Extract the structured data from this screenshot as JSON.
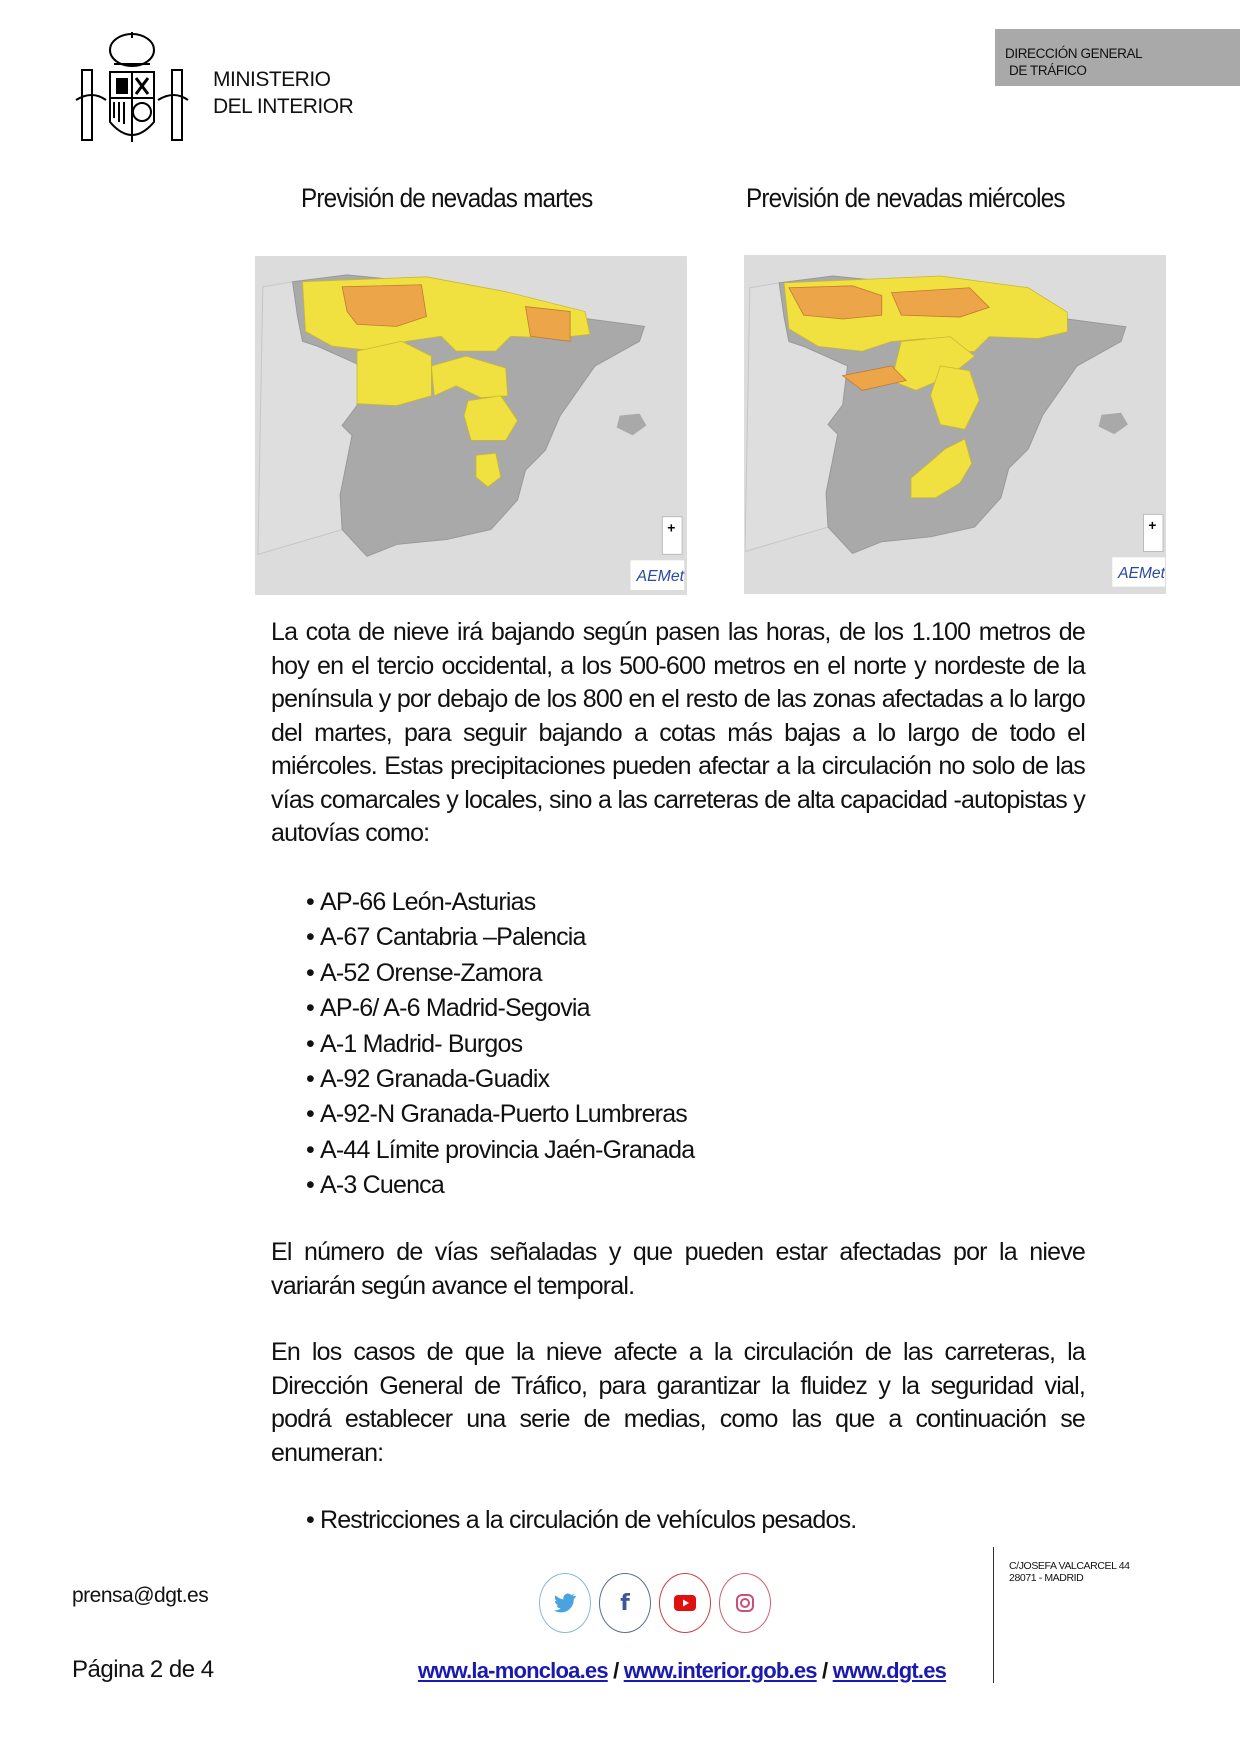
{
  "header": {
    "ministry_line1": "MINISTERIO",
    "ministry_line2": "DEL INTERIOR",
    "dgt_line1": "DIRECCIÓN GENERAL",
    "dgt_line2": "DE TRÁFICO"
  },
  "maps": [
    {
      "title": "Previsión de nevadas martes",
      "logo": "AEMet"
    },
    {
      "title": "Previsión de nevadas miércoles",
      "logo": "AEMet"
    }
  ],
  "map_colors": {
    "sea": "#dcdcdc",
    "land": "#a9a9a9",
    "yellow": "#f0e040",
    "orange": "#eda54a"
  },
  "paragraph1": "La cota de nieve irá bajando según pasen las horas, de los 1.100 metros de hoy en el tercio occidental, a los 500-600 metros en el norte y nordeste de la península y por debajo de los 800 en el resto de las zonas afectadas a lo largo del martes, para seguir bajando a cotas más bajas a lo largo de todo el miércoles. Estas precipitaciones pueden afectar a la circulación no solo de las vías comarcales y locales, sino a las carreteras de alta capacidad -autopistas y autovías como:",
  "roads": [
    "AP-66 León-Asturias",
    "A-67 Cantabria –Palencia",
    "A-52 Orense-Zamora",
    "AP-6/ A-6 Madrid-Segovia",
    "A-1 Madrid- Burgos",
    "A-92 Granada-Guadix",
    "A-92-N Granada-Puerto Lumbreras",
    "A-44 Límite provincia Jaén-Granada",
    "A-3 Cuenca"
  ],
  "paragraph2": "El número de vías señaladas y que pueden estar afectadas por la nieve variarán según avance el temporal.",
  "paragraph3": "En los casos de que la nieve afecte a la circulación de las carreteras, la Dirección General de Tráfico, para garantizar la fluidez y la seguridad vial, podrá establecer una serie de medias, como las que a continuación se enumeran:",
  "measures": [
    "Restricciones a la circulación de vehículos pesados."
  ],
  "footer": {
    "email": "prensa@dgt.es",
    "page": "Página 2 de 4",
    "links": [
      "www.la-moncloa.es",
      "www.interior.gob.es",
      "www.dgt.es"
    ],
    "separator": "/",
    "address_line1": "C/JOSEFA VALCARCEL 44",
    "address_line2": "28071 - MADRID",
    "social": [
      "twitter-icon",
      "facebook-icon",
      "youtube-icon",
      "instagram-icon"
    ]
  }
}
